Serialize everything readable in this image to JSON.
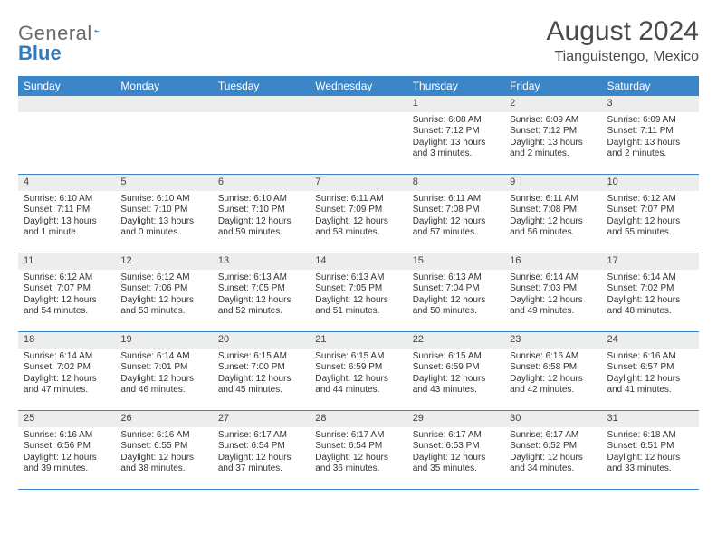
{
  "logo": {
    "gray_text": "General",
    "blue_text": "Blue"
  },
  "title": "August 2024",
  "location": "Tianguistengo, Mexico",
  "colors": {
    "header_bg": "#3a86c8",
    "header_text": "#ffffff",
    "daynum_bg": "#eceded",
    "border": "#3a86c8",
    "logo_gray": "#6a6a6a",
    "logo_blue": "#2f7bc0"
  },
  "day_names": [
    "Sunday",
    "Monday",
    "Tuesday",
    "Wednesday",
    "Thursday",
    "Friday",
    "Saturday"
  ],
  "weeks": [
    [
      null,
      null,
      null,
      null,
      {
        "n": "1",
        "sr": "Sunrise: 6:08 AM",
        "ss": "Sunset: 7:12 PM",
        "dl1": "Daylight: 13 hours",
        "dl2": "and 3 minutes."
      },
      {
        "n": "2",
        "sr": "Sunrise: 6:09 AM",
        "ss": "Sunset: 7:12 PM",
        "dl1": "Daylight: 13 hours",
        "dl2": "and 2 minutes."
      },
      {
        "n": "3",
        "sr": "Sunrise: 6:09 AM",
        "ss": "Sunset: 7:11 PM",
        "dl1": "Daylight: 13 hours",
        "dl2": "and 2 minutes."
      }
    ],
    [
      {
        "n": "4",
        "sr": "Sunrise: 6:10 AM",
        "ss": "Sunset: 7:11 PM",
        "dl1": "Daylight: 13 hours",
        "dl2": "and 1 minute."
      },
      {
        "n": "5",
        "sr": "Sunrise: 6:10 AM",
        "ss": "Sunset: 7:10 PM",
        "dl1": "Daylight: 13 hours",
        "dl2": "and 0 minutes."
      },
      {
        "n": "6",
        "sr": "Sunrise: 6:10 AM",
        "ss": "Sunset: 7:10 PM",
        "dl1": "Daylight: 12 hours",
        "dl2": "and 59 minutes."
      },
      {
        "n": "7",
        "sr": "Sunrise: 6:11 AM",
        "ss": "Sunset: 7:09 PM",
        "dl1": "Daylight: 12 hours",
        "dl2": "and 58 minutes."
      },
      {
        "n": "8",
        "sr": "Sunrise: 6:11 AM",
        "ss": "Sunset: 7:08 PM",
        "dl1": "Daylight: 12 hours",
        "dl2": "and 57 minutes."
      },
      {
        "n": "9",
        "sr": "Sunrise: 6:11 AM",
        "ss": "Sunset: 7:08 PM",
        "dl1": "Daylight: 12 hours",
        "dl2": "and 56 minutes."
      },
      {
        "n": "10",
        "sr": "Sunrise: 6:12 AM",
        "ss": "Sunset: 7:07 PM",
        "dl1": "Daylight: 12 hours",
        "dl2": "and 55 minutes."
      }
    ],
    [
      {
        "n": "11",
        "sr": "Sunrise: 6:12 AM",
        "ss": "Sunset: 7:07 PM",
        "dl1": "Daylight: 12 hours",
        "dl2": "and 54 minutes."
      },
      {
        "n": "12",
        "sr": "Sunrise: 6:12 AM",
        "ss": "Sunset: 7:06 PM",
        "dl1": "Daylight: 12 hours",
        "dl2": "and 53 minutes."
      },
      {
        "n": "13",
        "sr": "Sunrise: 6:13 AM",
        "ss": "Sunset: 7:05 PM",
        "dl1": "Daylight: 12 hours",
        "dl2": "and 52 minutes."
      },
      {
        "n": "14",
        "sr": "Sunrise: 6:13 AM",
        "ss": "Sunset: 7:05 PM",
        "dl1": "Daylight: 12 hours",
        "dl2": "and 51 minutes."
      },
      {
        "n": "15",
        "sr": "Sunrise: 6:13 AM",
        "ss": "Sunset: 7:04 PM",
        "dl1": "Daylight: 12 hours",
        "dl2": "and 50 minutes."
      },
      {
        "n": "16",
        "sr": "Sunrise: 6:14 AM",
        "ss": "Sunset: 7:03 PM",
        "dl1": "Daylight: 12 hours",
        "dl2": "and 49 minutes."
      },
      {
        "n": "17",
        "sr": "Sunrise: 6:14 AM",
        "ss": "Sunset: 7:02 PM",
        "dl1": "Daylight: 12 hours",
        "dl2": "and 48 minutes."
      }
    ],
    [
      {
        "n": "18",
        "sr": "Sunrise: 6:14 AM",
        "ss": "Sunset: 7:02 PM",
        "dl1": "Daylight: 12 hours",
        "dl2": "and 47 minutes."
      },
      {
        "n": "19",
        "sr": "Sunrise: 6:14 AM",
        "ss": "Sunset: 7:01 PM",
        "dl1": "Daylight: 12 hours",
        "dl2": "and 46 minutes."
      },
      {
        "n": "20",
        "sr": "Sunrise: 6:15 AM",
        "ss": "Sunset: 7:00 PM",
        "dl1": "Daylight: 12 hours",
        "dl2": "and 45 minutes."
      },
      {
        "n": "21",
        "sr": "Sunrise: 6:15 AM",
        "ss": "Sunset: 6:59 PM",
        "dl1": "Daylight: 12 hours",
        "dl2": "and 44 minutes."
      },
      {
        "n": "22",
        "sr": "Sunrise: 6:15 AM",
        "ss": "Sunset: 6:59 PM",
        "dl1": "Daylight: 12 hours",
        "dl2": "and 43 minutes."
      },
      {
        "n": "23",
        "sr": "Sunrise: 6:16 AM",
        "ss": "Sunset: 6:58 PM",
        "dl1": "Daylight: 12 hours",
        "dl2": "and 42 minutes."
      },
      {
        "n": "24",
        "sr": "Sunrise: 6:16 AM",
        "ss": "Sunset: 6:57 PM",
        "dl1": "Daylight: 12 hours",
        "dl2": "and 41 minutes."
      }
    ],
    [
      {
        "n": "25",
        "sr": "Sunrise: 6:16 AM",
        "ss": "Sunset: 6:56 PM",
        "dl1": "Daylight: 12 hours",
        "dl2": "and 39 minutes."
      },
      {
        "n": "26",
        "sr": "Sunrise: 6:16 AM",
        "ss": "Sunset: 6:55 PM",
        "dl1": "Daylight: 12 hours",
        "dl2": "and 38 minutes."
      },
      {
        "n": "27",
        "sr": "Sunrise: 6:17 AM",
        "ss": "Sunset: 6:54 PM",
        "dl1": "Daylight: 12 hours",
        "dl2": "and 37 minutes."
      },
      {
        "n": "28",
        "sr": "Sunrise: 6:17 AM",
        "ss": "Sunset: 6:54 PM",
        "dl1": "Daylight: 12 hours",
        "dl2": "and 36 minutes."
      },
      {
        "n": "29",
        "sr": "Sunrise: 6:17 AM",
        "ss": "Sunset: 6:53 PM",
        "dl1": "Daylight: 12 hours",
        "dl2": "and 35 minutes."
      },
      {
        "n": "30",
        "sr": "Sunrise: 6:17 AM",
        "ss": "Sunset: 6:52 PM",
        "dl1": "Daylight: 12 hours",
        "dl2": "and 34 minutes."
      },
      {
        "n": "31",
        "sr": "Sunrise: 6:18 AM",
        "ss": "Sunset: 6:51 PM",
        "dl1": "Daylight: 12 hours",
        "dl2": "and 33 minutes."
      }
    ]
  ]
}
